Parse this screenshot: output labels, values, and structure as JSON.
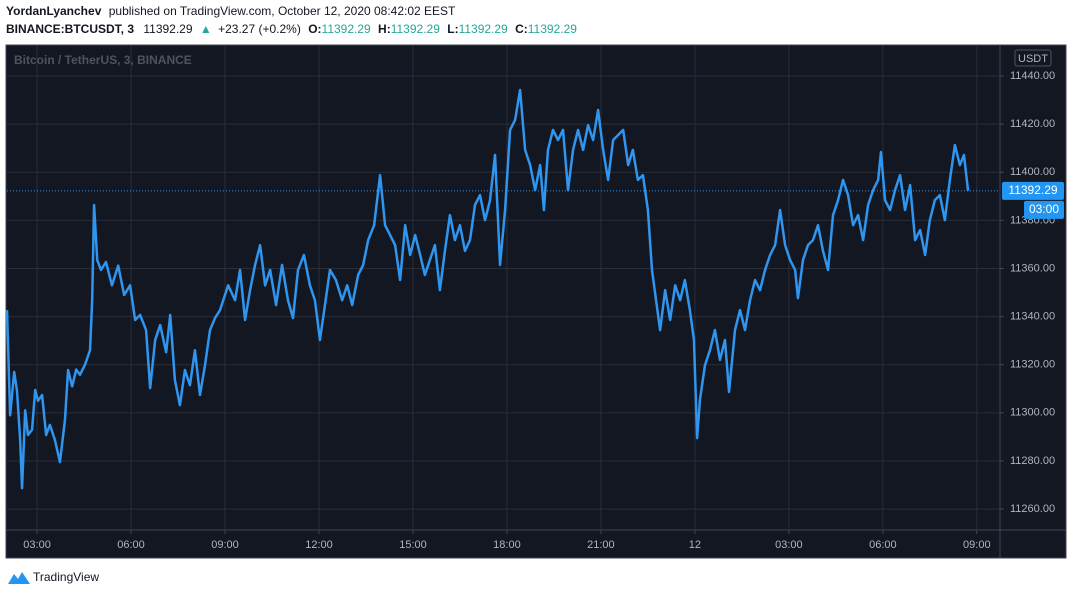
{
  "chart_data": {
    "type": "line",
    "author": "YordanLyanchev",
    "published": "published on TradingView.com, October 12, 2020 08:42:02 EEST",
    "symbol": "BINANCE:BTCUSDT, 3",
    "last": 11392.29,
    "arrow": "▲",
    "change": "+23.27 (+0.2%)",
    "ohlc": [
      {
        "label": "O:",
        "value": 11392.29
      },
      {
        "label": "H:",
        "value": 11392.29
      },
      {
        "label": "L:",
        "value": 11392.29
      },
      {
        "label": "C:",
        "value": 11392.29
      }
    ],
    "watermark": "Bitcoin / TetherUS, 3, BINANCE",
    "currency": "USDT",
    "price_label": "11392.29",
    "countdown": "03:00",
    "brand": "TradingView",
    "grid": true,
    "x": [
      2.04,
      2.14,
      2.27,
      2.36,
      2.46,
      2.52,
      2.62,
      2.71,
      2.84,
      2.94,
      3.03,
      3.16,
      3.29,
      3.41,
      3.57,
      3.73,
      3.89,
      3.99,
      4.12,
      4.25,
      4.37,
      4.53,
      4.69,
      4.76,
      4.82,
      4.92,
      5.04,
      5.2,
      5.39,
      5.59,
      5.78,
      5.97,
      6.13,
      6.29,
      6.48,
      6.61,
      6.77,
      6.93,
      7.12,
      7.25,
      7.4,
      7.56,
      7.72,
      7.88,
      8.04,
      8.2,
      8.36,
      8.52,
      8.68,
      8.84,
      9.1,
      9.32,
      9.48,
      9.64,
      9.8,
      9.96,
      10.12,
      10.28,
      10.44,
      10.63,
      10.82,
      11.01,
      11.17,
      11.33,
      11.52,
      11.71,
      11.87,
      12.03,
      12.19,
      12.35,
      12.54,
      12.74,
      12.9,
      13.06,
      13.25,
      13.41,
      13.57,
      13.76,
      13.95,
      14.11,
      14.27,
      14.43,
      14.59,
      14.75,
      14.91,
      15.07,
      15.23,
      15.38,
      15.54,
      15.7,
      15.86,
      16.02,
      16.18,
      16.34,
      16.5,
      16.66,
      16.82,
      16.98,
      17.14,
      17.3,
      17.46,
      17.62,
      17.78,
      17.94,
      18.1,
      18.26,
      18.42,
      18.58,
      18.74,
      18.9,
      19.06,
      19.18,
      19.31,
      19.47,
      19.63,
      19.79,
      19.95,
      20.11,
      20.27,
      20.43,
      20.59,
      20.75,
      20.91,
      21.07,
      21.23,
      21.39,
      21.55,
      21.71,
      21.87,
      22.02,
      22.18,
      22.34,
      22.5,
      22.63,
      22.76,
      22.89,
      23.05,
      23.21,
      23.37,
      23.53,
      23.68,
      23.84,
      23.97,
      24.07,
      24.16,
      24.32,
      24.48,
      24.64,
      24.8,
      24.96,
      25.09,
      25.28,
      25.44,
      25.6,
      25.76,
      25.92,
      26.08,
      26.24,
      26.4,
      26.56,
      26.72,
      26.88,
      27.04,
      27.2,
      27.29,
      27.45,
      27.61,
      27.77,
      27.93,
      28.09,
      28.25,
      28.41,
      28.57,
      28.73,
      28.89,
      29.05,
      29.21,
      29.37,
      29.53,
      29.69,
      29.85,
      29.94,
      30.07,
      30.23,
      30.39,
      30.55,
      30.71,
      30.87,
      31.03,
      31.19,
      31.35,
      31.5,
      31.66,
      31.82,
      31.98,
      32.14,
      32.3,
      32.46,
      32.59,
      32.72
    ],
    "series": [
      {
        "name": "BTCUSDT",
        "color": "#2f95ee",
        "values": [
          11342.7,
          11299,
          11317,
          11309,
          11288.7,
          11268.7,
          11301,
          11290.8,
          11293,
          11309.5,
          11305,
          11307.4,
          11290.8,
          11295,
          11288.7,
          11279.5,
          11297,
          11317.8,
          11311,
          11318,
          11315.8,
          11320,
          11326,
          11347,
          11386.4,
          11363.5,
          11359.4,
          11362.7,
          11353,
          11361.2,
          11349,
          11353,
          11338.6,
          11340.7,
          11334.4,
          11310.3,
          11330.3,
          11336.5,
          11325.2,
          11340.7,
          11313.6,
          11303.2,
          11317.8,
          11311.5,
          11326,
          11307.4,
          11319.7,
          11334.4,
          11339.4,
          11342.7,
          11353,
          11346.8,
          11359.4,
          11338.6,
          11351,
          11361.5,
          11369.7,
          11353,
          11359.4,
          11344.8,
          11361.5,
          11346.8,
          11339.4,
          11359.4,
          11365.6,
          11353,
          11346.8,
          11330.3,
          11344.8,
          11359.4,
          11355.2,
          11346.8,
          11353,
          11344.8,
          11357.3,
          11361.5,
          11371.8,
          11378,
          11398.8,
          11378,
          11373.9,
          11369.7,
          11355.2,
          11378,
          11365.6,
          11373.9,
          11365.6,
          11357.3,
          11363.5,
          11369.7,
          11351,
          11367.3,
          11382.2,
          11371.8,
          11378,
          11367.3,
          11371.8,
          11386.4,
          11390.5,
          11380.1,
          11388.4,
          11407.2,
          11361.5,
          11384.3,
          11417.6,
          11421.7,
          11434.2,
          11409.3,
          11403,
          11392.6,
          11403,
          11384.3,
          11409.3,
          11417.6,
          11413.4,
          11417.6,
          11392.6,
          11409.3,
          11417.6,
          11409.3,
          11419.6,
          11413.4,
          11425.9,
          11409.3,
          11396.8,
          11413.4,
          11415.5,
          11417.6,
          11403,
          11409.3,
          11396.8,
          11398.8,
          11384.3,
          11359.4,
          11346.8,
          11334.4,
          11351,
          11338.6,
          11353,
          11346.8,
          11355.2,
          11342.7,
          11330.3,
          11289.5,
          11305.3,
          11319.7,
          11326,
          11334.4,
          11322,
          11330.3,
          11308.7,
          11334.4,
          11342.7,
          11334.4,
          11346.8,
          11355.2,
          11351,
          11359.4,
          11365.6,
          11369.7,
          11384.3,
          11369.7,
          11363.5,
          11359.4,
          11347.7,
          11363.5,
          11369.7,
          11371.8,
          11378,
          11367.3,
          11359.4,
          11382.2,
          11388.4,
          11396.8,
          11390.5,
          11378,
          11382.2,
          11371.8,
          11386.4,
          11392.6,
          11396.8,
          11408.4,
          11388.4,
          11384.3,
          11392.6,
          11398.8,
          11384.3,
          11394.7,
          11371.8,
          11376,
          11365.6,
          11380.1,
          11388.4,
          11390.5,
          11380.1,
          11396.8,
          11411.3,
          11403,
          11407.2,
          11392.29
        ]
      }
    ],
    "xlim": [
      2.04,
      33.74
    ],
    "ylim": [
      11251.3,
      11452.9
    ],
    "xticks": [
      {
        "value": 3,
        "label": "03:00"
      },
      {
        "value": 6,
        "label": "06:00"
      },
      {
        "value": 9,
        "label": "09:00"
      },
      {
        "value": 12,
        "label": "12:00"
      },
      {
        "value": 15,
        "label": "15:00"
      },
      {
        "value": 18,
        "label": "18:00"
      },
      {
        "value": 21,
        "label": "21:00"
      },
      {
        "value": 24,
        "label": "12"
      },
      {
        "value": 27,
        "label": "03:00"
      },
      {
        "value": 30,
        "label": "06:00"
      },
      {
        "value": 33,
        "label": "09:00"
      }
    ],
    "yticks": [
      {
        "value": 11260,
        "label": "11260.00"
      },
      {
        "value": 11280,
        "label": "11280.00"
      },
      {
        "value": 11300,
        "label": "11300.00"
      },
      {
        "value": 11320,
        "label": "11320.00"
      },
      {
        "value": 11340,
        "label": "11340.00"
      },
      {
        "value": 11360,
        "label": "11360.00"
      },
      {
        "value": 11380,
        "label": "11380.00"
      },
      {
        "value": 11400,
        "label": "11400.00"
      },
      {
        "value": 11420,
        "label": "11420.00"
      },
      {
        "value": 11440,
        "label": "11440.00"
      }
    ]
  }
}
